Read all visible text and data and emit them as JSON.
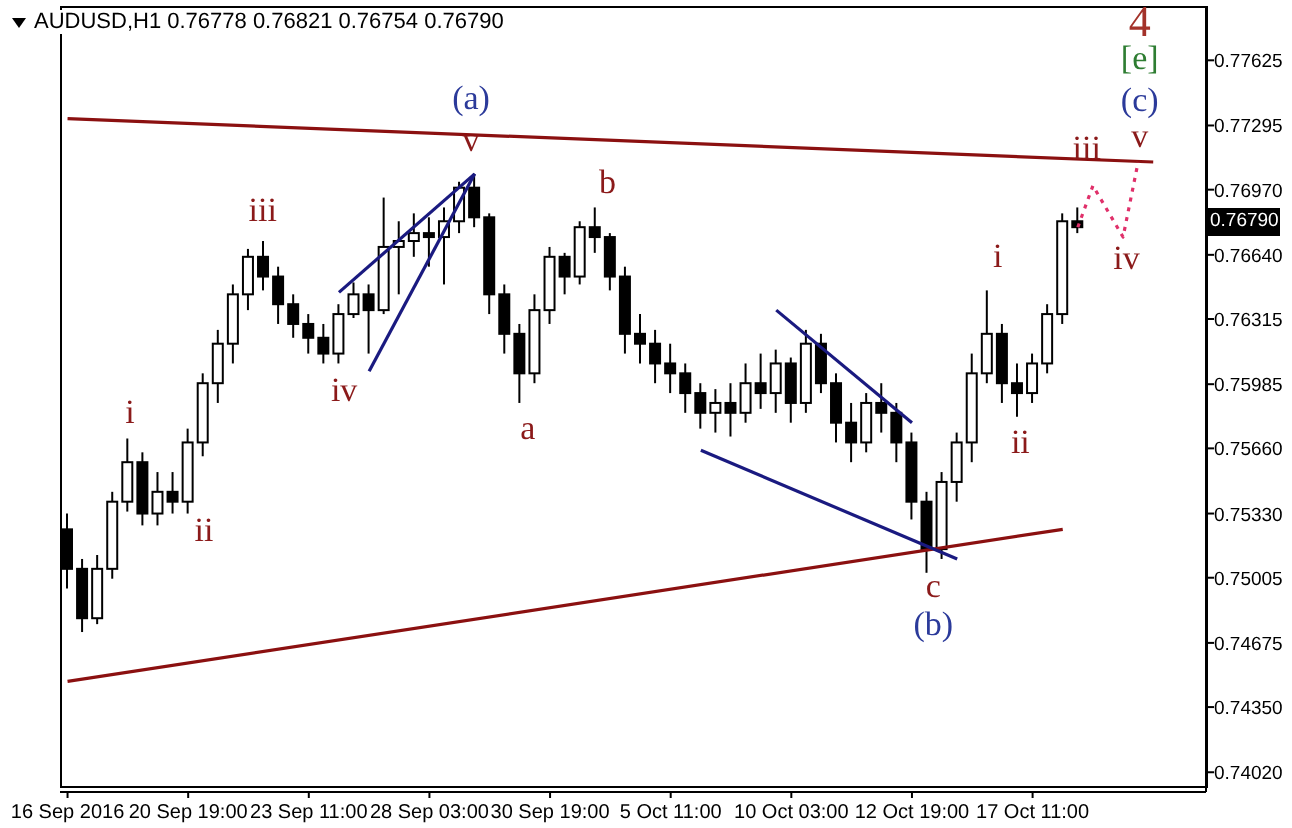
{
  "chart_data": {
    "type": "candlestick",
    "title": "AUDUSD,H1 0.76778 0.76821 0.76754 0.76790",
    "color": "#000000",
    "categories": [
      "16 Sep 2016",
      null,
      null,
      null,
      null,
      null,
      null,
      null,
      "20 Sep 19:00",
      null,
      null,
      null,
      null,
      null,
      null,
      null,
      "23 Sep 11:00",
      null,
      null,
      null,
      null,
      null,
      null,
      null,
      "28 Sep 03:00",
      null,
      null,
      null,
      null,
      null,
      null,
      null,
      "30 Sep 19:00",
      null,
      null,
      null,
      null,
      null,
      null,
      null,
      "5 Oct 11:00",
      null,
      null,
      null,
      null,
      null,
      null,
      null,
      "10 Oct 03:00",
      null,
      null,
      null,
      null,
      null,
      null,
      null,
      "12 Oct 19:00",
      null,
      null,
      null,
      null,
      null,
      null,
      null,
      "17 Oct 11:00",
      null,
      null,
      null,
      null,
      null,
      null,
      null,
      null,
      null,
      null,
      null
    ],
    "ohlc": [
      [
        0.7525,
        0.7533,
        0.7495,
        0.7505
      ],
      [
        0.7505,
        0.751,
        0.7473,
        0.748
      ],
      [
        0.748,
        0.7512,
        0.7477,
        0.7505
      ],
      [
        0.7505,
        0.7544,
        0.75,
        0.7539
      ],
      [
        0.7539,
        0.7571,
        0.7534,
        0.7559
      ],
      [
        0.7559,
        0.7564,
        0.7527,
        0.7533
      ],
      [
        0.7533,
        0.7554,
        0.7527,
        0.7544
      ],
      [
        0.7544,
        0.7554,
        0.7533,
        0.7539
      ],
      [
        0.7539,
        0.7576,
        0.7533,
        0.7569
      ],
      [
        0.7569,
        0.7604,
        0.7562,
        0.7599
      ],
      [
        0.7599,
        0.7626,
        0.7589,
        0.7619
      ],
      [
        0.7619,
        0.7649,
        0.7609,
        0.7644
      ],
      [
        0.7644,
        0.7667,
        0.7636,
        0.7663
      ],
      [
        0.7663,
        0.7671,
        0.7646,
        0.7653
      ],
      [
        0.7653,
        0.7658,
        0.7629,
        0.7639
      ],
      [
        0.7639,
        0.7644,
        0.7622,
        0.7629
      ],
      [
        0.7629,
        0.7634,
        0.7614,
        0.7622
      ],
      [
        0.7622,
        0.7629,
        0.7609,
        0.7614
      ],
      [
        0.7614,
        0.7639,
        0.7609,
        0.7634
      ],
      [
        0.7634,
        0.765,
        0.7632,
        0.7644
      ],
      [
        0.7644,
        0.7649,
        0.7614,
        0.7636
      ],
      [
        0.7636,
        0.7693,
        0.7634,
        0.7668
      ],
      [
        0.7668,
        0.7681,
        0.7644,
        0.7671
      ],
      [
        0.7671,
        0.7685,
        0.7663,
        0.7675
      ],
      [
        0.7675,
        0.7683,
        0.7658,
        0.7673
      ],
      [
        0.7673,
        0.7688,
        0.7649,
        0.7681
      ],
      [
        0.7681,
        0.7701,
        0.7675,
        0.7698
      ],
      [
        0.7698,
        0.7705,
        0.7678,
        0.7683
      ],
      [
        0.7683,
        0.7685,
        0.7634,
        0.7644
      ],
      [
        0.7644,
        0.7649,
        0.7614,
        0.7624
      ],
      [
        0.7624,
        0.7629,
        0.7589,
        0.7604
      ],
      [
        0.7604,
        0.7644,
        0.7599,
        0.7636
      ],
      [
        0.7636,
        0.7668,
        0.7629,
        0.7663
      ],
      [
        0.7663,
        0.7665,
        0.7644,
        0.7653
      ],
      [
        0.7653,
        0.7681,
        0.7649,
        0.7678
      ],
      [
        0.7678,
        0.7688,
        0.7665,
        0.7673
      ],
      [
        0.7673,
        0.7675,
        0.7646,
        0.7653
      ],
      [
        0.7653,
        0.7658,
        0.7614,
        0.7624
      ],
      [
        0.7624,
        0.7634,
        0.7609,
        0.7619
      ],
      [
        0.7619,
        0.7626,
        0.7599,
        0.7609
      ],
      [
        0.7609,
        0.7619,
        0.7594,
        0.7604
      ],
      [
        0.7604,
        0.7609,
        0.7584,
        0.7594
      ],
      [
        0.7594,
        0.7599,
        0.7576,
        0.7584
      ],
      [
        0.7584,
        0.7596,
        0.7574,
        0.7589
      ],
      [
        0.7589,
        0.7599,
        0.7572,
        0.7584
      ],
      [
        0.7584,
        0.7609,
        0.7579,
        0.7599
      ],
      [
        0.7599,
        0.7614,
        0.7586,
        0.7594
      ],
      [
        0.7594,
        0.7616,
        0.7584,
        0.7609
      ],
      [
        0.7609,
        0.7612,
        0.7579,
        0.7589
      ],
      [
        0.7589,
        0.7626,
        0.7584,
        0.7619
      ],
      [
        0.7619,
        0.7624,
        0.7594,
        0.7599
      ],
      [
        0.7599,
        0.7604,
        0.7569,
        0.7579
      ],
      [
        0.7579,
        0.7589,
        0.7559,
        0.7569
      ],
      [
        0.7569,
        0.7594,
        0.7564,
        0.7589
      ],
      [
        0.7589,
        0.7599,
        0.7574,
        0.7584
      ],
      [
        0.7584,
        0.7589,
        0.7559,
        0.7569
      ],
      [
        0.7569,
        0.7574,
        0.753,
        0.7539
      ],
      [
        0.7539,
        0.7544,
        0.7503,
        0.7515
      ],
      [
        0.7515,
        0.7554,
        0.751,
        0.7549
      ],
      [
        0.7549,
        0.7574,
        0.7539,
        0.7569
      ],
      [
        0.7569,
        0.7614,
        0.7559,
        0.7604
      ],
      [
        0.7604,
        0.7646,
        0.7599,
        0.7624
      ],
      [
        0.7624,
        0.7629,
        0.7589,
        0.7599
      ],
      [
        0.7599,
        0.7609,
        0.7582,
        0.7594
      ],
      [
        0.7594,
        0.7614,
        0.7589,
        0.7609
      ],
      [
        0.7609,
        0.7639,
        0.7604,
        0.7634
      ],
      [
        0.7634,
        0.7685,
        0.7629,
        0.7681
      ],
      [
        0.7681,
        0.7688,
        0.7675,
        0.7678
      ],
      null,
      null,
      null,
      null,
      null,
      null,
      null,
      null
    ],
    "series": [
      {
        "type": "line",
        "color": "#8b1010",
        "values": [
          0.7733,
          null,
          null,
          null,
          null,
          null,
          null,
          null,
          null,
          null,
          null,
          null,
          null,
          null,
          null,
          null,
          null,
          null,
          null,
          null,
          null,
          null,
          null,
          null,
          null,
          null,
          null,
          null,
          null,
          null,
          null,
          null,
          null,
          null,
          null,
          null,
          null,
          null,
          null,
          null,
          null,
          null,
          null,
          null,
          null,
          null,
          null,
          null,
          null,
          null,
          null,
          null,
          null,
          null,
          null,
          null,
          null,
          null,
          null,
          null,
          null,
          null,
          null,
          null,
          null,
          null,
          null,
          null,
          null,
          null,
          null,
          null,
          0.7711,
          null,
          null,
          null
        ]
      },
      {
        "type": "line",
        "color": "#8b1010",
        "values": [
          0.7448,
          null,
          null,
          null,
          null,
          null,
          null,
          null,
          null,
          null,
          null,
          null,
          null,
          null,
          null,
          null,
          null,
          null,
          null,
          null,
          null,
          null,
          null,
          null,
          null,
          null,
          null,
          null,
          null,
          null,
          null,
          null,
          null,
          null,
          null,
          null,
          null,
          null,
          null,
          null,
          null,
          null,
          null,
          null,
          null,
          null,
          null,
          null,
          null,
          null,
          null,
          null,
          null,
          null,
          null,
          null,
          null,
          null,
          null,
          null,
          null,
          null,
          null,
          null,
          null,
          null,
          0.7525,
          null,
          null,
          null,
          null,
          null,
          null,
          null,
          null,
          null
        ]
      },
      {
        "type": "line",
        "color": "#1a1a80",
        "values": [
          null,
          null,
          null,
          null,
          null,
          null,
          null,
          null,
          null,
          null,
          null,
          null,
          null,
          null,
          null,
          null,
          null,
          null,
          0.7645,
          null,
          null,
          null,
          null,
          null,
          null,
          null,
          null,
          0.7705,
          null,
          null,
          null,
          null,
          null,
          null,
          null,
          null,
          null,
          null,
          null,
          null,
          null,
          null,
          null,
          null,
          null,
          null,
          null,
          null,
          null,
          null,
          null,
          null,
          null,
          null,
          null,
          null,
          null,
          null,
          null,
          null,
          null,
          null,
          null,
          null,
          null,
          null,
          null,
          null,
          null,
          null,
          null,
          null,
          null,
          null,
          null,
          null
        ]
      },
      {
        "type": "line",
        "color": "#1a1a80",
        "values": [
          null,
          null,
          null,
          null,
          null,
          null,
          null,
          null,
          null,
          null,
          null,
          null,
          null,
          null,
          null,
          null,
          null,
          null,
          null,
          null,
          0.7605,
          null,
          null,
          null,
          null,
          null,
          null,
          0.7705,
          null,
          null,
          null,
          null,
          null,
          null,
          null,
          null,
          null,
          null,
          null,
          null,
          null,
          null,
          null,
          null,
          null,
          null,
          null,
          null,
          null,
          null,
          null,
          null,
          null,
          null,
          null,
          null,
          null,
          null,
          null,
          null,
          null,
          null,
          null,
          null,
          null,
          null,
          null,
          null,
          null,
          null,
          null,
          null,
          null,
          null,
          null,
          null
        ]
      },
      {
        "type": "line",
        "color": "#1a1a80",
        "values": [
          null,
          null,
          null,
          null,
          null,
          null,
          null,
          null,
          null,
          null,
          null,
          null,
          null,
          null,
          null,
          null,
          null,
          null,
          null,
          null,
          null,
          null,
          null,
          null,
          null,
          null,
          null,
          null,
          null,
          null,
          null,
          null,
          null,
          null,
          null,
          null,
          null,
          null,
          null,
          null,
          null,
          null,
          null,
          null,
          null,
          null,
          null,
          0.7636,
          null,
          null,
          null,
          null,
          null,
          null,
          null,
          null,
          0.7579,
          null,
          null,
          null,
          null,
          null,
          null,
          null,
          null,
          null,
          null,
          null,
          null,
          null,
          null,
          null,
          null,
          null,
          null,
          null
        ]
      },
      {
        "type": "line",
        "color": "#1a1a80",
        "values": [
          null,
          null,
          null,
          null,
          null,
          null,
          null,
          null,
          null,
          null,
          null,
          null,
          null,
          null,
          null,
          null,
          null,
          null,
          null,
          null,
          null,
          null,
          null,
          null,
          null,
          null,
          null,
          null,
          null,
          null,
          null,
          null,
          null,
          null,
          null,
          null,
          null,
          null,
          null,
          null,
          null,
          null,
          0.7565,
          null,
          null,
          null,
          null,
          null,
          null,
          null,
          null,
          null,
          null,
          null,
          null,
          null,
          null,
          null,
          null,
          0.751,
          null,
          null,
          null,
          null,
          null,
          null,
          null,
          null,
          null,
          null,
          null,
          null,
          null,
          null,
          null,
          null
        ]
      },
      {
        "type": "line",
        "color": "#e0306a",
        "line_style": "dotted",
        "values": [
          null,
          null,
          null,
          null,
          null,
          null,
          null,
          null,
          null,
          null,
          null,
          null,
          null,
          null,
          null,
          null,
          null,
          null,
          null,
          null,
          null,
          null,
          null,
          null,
          null,
          null,
          null,
          null,
          null,
          null,
          null,
          null,
          null,
          null,
          null,
          null,
          null,
          null,
          null,
          null,
          null,
          null,
          null,
          null,
          null,
          null,
          null,
          null,
          null,
          null,
          null,
          null,
          null,
          null,
          null,
          null,
          null,
          null,
          null,
          null,
          null,
          null,
          null,
          null,
          null,
          null,
          null,
          0.7678,
          0.7699,
          null,
          0.7673,
          0.7711,
          null,
          null,
          null,
          null
        ]
      }
    ],
    "ylim": [
      0.7392,
      0.779
    ],
    "yticks": [
      {
        "value": 0.77625,
        "label": "0.77625"
      },
      {
        "value": 0.77295,
        "label": "0.77295"
      },
      {
        "value": 0.7697,
        "label": "0.76970"
      },
      {
        "value": 0.7664,
        "label": "0.76640"
      },
      {
        "value": 0.76315,
        "label": "0.76315"
      },
      {
        "value": 0.75985,
        "label": "0.75985"
      },
      {
        "value": 0.7566,
        "label": "0.75660"
      },
      {
        "value": 0.7533,
        "label": "0.75330"
      },
      {
        "value": 0.75005,
        "label": "0.75005"
      },
      {
        "value": 0.74675,
        "label": "0.74675"
      },
      {
        "value": 0.7435,
        "label": "0.74350"
      },
      {
        "value": 0.7402,
        "label": "0.74020"
      }
    ],
    "annotations": [
      "(a)",
      "v",
      "iii",
      "i",
      "ii",
      "iv",
      "a",
      "b",
      "c",
      "(b)",
      "i",
      "ii",
      "iii",
      "iv",
      "v",
      "(c)",
      "[e]",
      "4",
      "0.76790"
    ]
  }
}
